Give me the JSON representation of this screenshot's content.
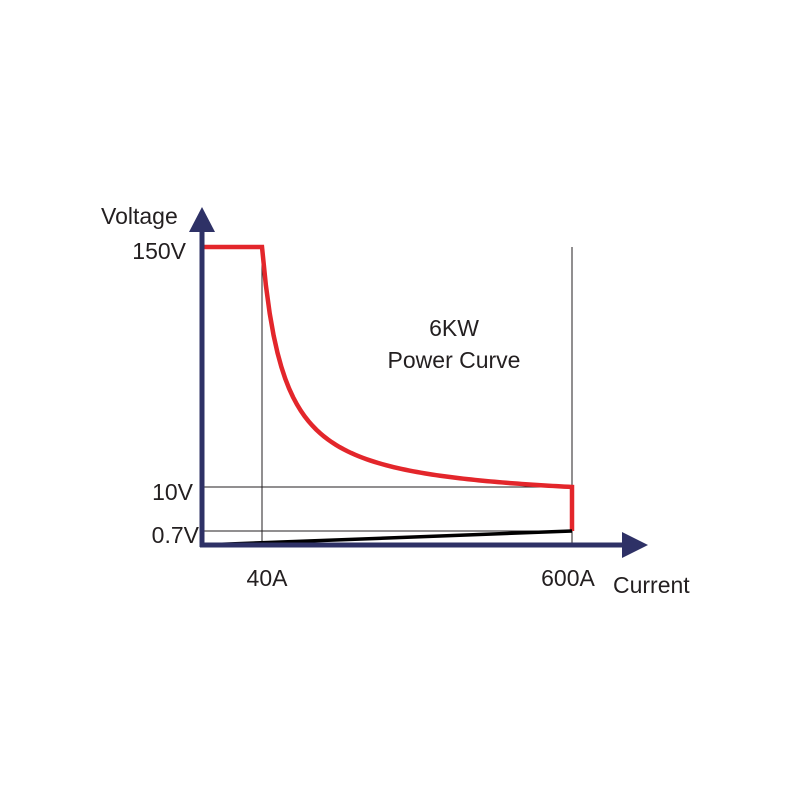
{
  "chart_data": {
    "type": "line",
    "annotation": [
      "6KW",
      "Power Curve"
    ],
    "xlabel": "Current",
    "ylabel": "Voltage",
    "x_ticks": [
      {
        "value": 40,
        "label": "40A"
      },
      {
        "value": 600,
        "label": "600A"
      }
    ],
    "y_ticks": [
      {
        "value": 150,
        "label": "150V"
      },
      {
        "value": 10,
        "label": "10V"
      },
      {
        "value": 0.7,
        "label": "0.7V"
      }
    ],
    "power_watts": 6000,
    "series": [
      {
        "role": "max-output",
        "color": "#e3262b",
        "points": [
          [
            0,
            150
          ],
          [
            40,
            150
          ],
          [
            60,
            100
          ],
          [
            100,
            60
          ],
          [
            150,
            40
          ],
          [
            200,
            30
          ],
          [
            300,
            20
          ],
          [
            400,
            15
          ],
          [
            500,
            12
          ],
          [
            600,
            10
          ],
          [
            600,
            0.7
          ]
        ]
      },
      {
        "role": "min-output",
        "color": "#000000",
        "points": [
          [
            0,
            0
          ],
          [
            600,
            0.7
          ]
        ]
      }
    ],
    "axis_color": "#2e3166",
    "grid_color": "#231f20"
  }
}
